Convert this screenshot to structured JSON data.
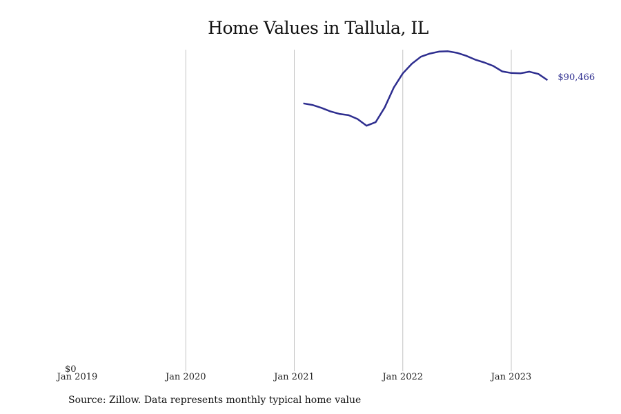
{
  "chart_data": {
    "type": "line",
    "title": "Home Values in Tallula, IL",
    "source": "Source: Zillow. Data represents monthly typical home value",
    "x_ticks": [
      "Jan 2019",
      "Jan 2020",
      "Jan 2021",
      "Jan 2022",
      "Jan 2023"
    ],
    "y_ticks": [
      "$0"
    ],
    "ylim": [
      0,
      100000
    ],
    "grid": "vertical",
    "end_label": "$90,466",
    "colors": {
      "line": "#2e2e8f",
      "grid": "#c4c4c4"
    },
    "series": [
      {
        "x": [
          "2021-02",
          "2021-03",
          "2021-04",
          "2021-05",
          "2021-06",
          "2021-07",
          "2021-08",
          "2021-09",
          "2021-10",
          "2021-11",
          "2021-12",
          "2022-01",
          "2022-02",
          "2022-03",
          "2022-04",
          "2022-05",
          "2022-06",
          "2022-07",
          "2022-08",
          "2022-09",
          "2022-10",
          "2022-11",
          "2022-12",
          "2023-01",
          "2023-02",
          "2023-03",
          "2023-04",
          "2023-05"
        ],
        "values": [
          83200,
          82700,
          81800,
          80700,
          79900,
          79500,
          78300,
          76200,
          77300,
          81900,
          88100,
          92600,
          95600,
          97800,
          98800,
          99400,
          99500,
          99000,
          98100,
          96900,
          96000,
          94900,
          93200,
          92700,
          92600,
          93100,
          92400,
          90466
        ]
      }
    ]
  }
}
